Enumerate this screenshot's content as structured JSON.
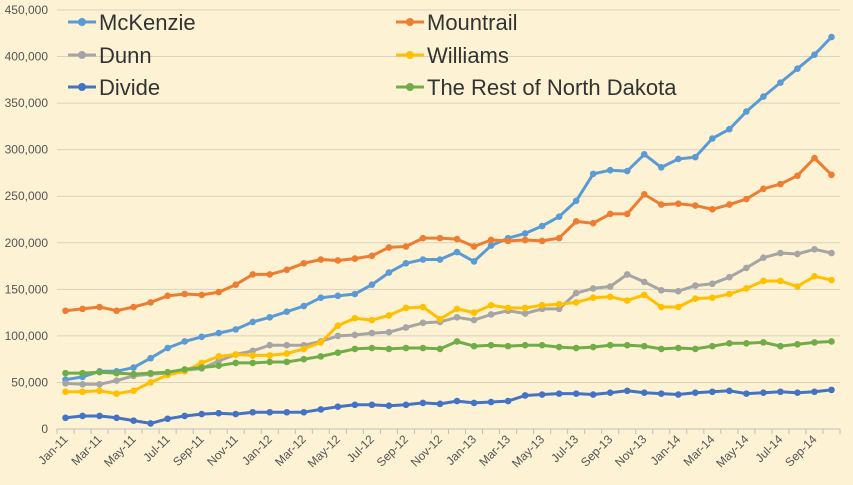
{
  "chart_data": {
    "type": "line",
    "title": "",
    "xlabel": "",
    "ylabel": "",
    "ylim": [
      0,
      450000
    ],
    "yticks": [
      0,
      50000,
      100000,
      150000,
      200000,
      250000,
      300000,
      350000,
      400000,
      450000
    ],
    "ytick_labels": [
      "0",
      "50,000",
      "100,000",
      "150,000",
      "200,000",
      "250,000",
      "300,000",
      "350,000",
      "400,000",
      "450,000"
    ],
    "grid": true,
    "legend_position": "top",
    "x": [
      "Jan-11",
      "Feb-11",
      "Mar-11",
      "Apr-11",
      "May-11",
      "Jun-11",
      "Jul-11",
      "Aug-11",
      "Sep-11",
      "Oct-11",
      "Nov-11",
      "Dec-11",
      "Jan-12",
      "Feb-12",
      "Mar-12",
      "Apr-12",
      "May-12",
      "Jun-12",
      "Jul-12",
      "Aug-12",
      "Sep-12",
      "Oct-12",
      "Nov-12",
      "Dec-12",
      "Jan-13",
      "Feb-13",
      "Mar-13",
      "Apr-13",
      "May-13",
      "Jun-13",
      "Jul-13",
      "Aug-13",
      "Sep-13",
      "Oct-13",
      "Nov-13",
      "Dec-13",
      "Jan-14",
      "Feb-14",
      "Mar-14",
      "Apr-14",
      "May-14",
      "Jun-14",
      "Jul-14",
      "Aug-14",
      "Sep-14",
      "Oct-14"
    ],
    "x_tick_labels": [
      "Jan-11",
      "",
      "Mar-11",
      "",
      "May-11",
      "",
      "Jul-11",
      "",
      "Sep-11",
      "",
      "Nov-11",
      "",
      "Jan-12",
      "",
      "Mar-12",
      "",
      "May-12",
      "",
      "Jul-12",
      "",
      "Sep-12",
      "",
      "Nov-12",
      "",
      "Jan-13",
      "",
      "Mar-13",
      "",
      "May-13",
      "",
      "Jul-13",
      "",
      "Sep-13",
      "",
      "Nov-13",
      "",
      "Jan-14",
      "",
      "Mar-14",
      "",
      "May-14",
      "",
      "Jul-14",
      "",
      "Sep-14",
      ""
    ],
    "series": [
      {
        "name": "McKenzie",
        "color": "#5b9bd5",
        "values": [
          53000,
          56000,
          62000,
          62000,
          66000,
          76000,
          87000,
          94000,
          99000,
          103000,
          107000,
          115000,
          120000,
          126000,
          132000,
          141000,
          143000,
          145000,
          155000,
          168000,
          178000,
          182000,
          182000,
          190000,
          180000,
          197000,
          205000,
          210000,
          218000,
          228000,
          245000,
          274000,
          278000,
          277000,
          295000,
          281000,
          290000,
          292000,
          312000,
          322000,
          341000,
          357000,
          372000,
          387000,
          402000,
          421000
        ]
      },
      {
        "name": "Mountrail",
        "color": "#ed7d31",
        "values": [
          127000,
          129000,
          131000,
          127000,
          131000,
          136000,
          143000,
          145000,
          144000,
          147000,
          155000,
          166000,
          166000,
          171000,
          178000,
          182000,
          181000,
          183000,
          186000,
          195000,
          196000,
          205000,
          205000,
          204000,
          196000,
          203000,
          202000,
          203000,
          202000,
          205000,
          223000,
          221000,
          231000,
          231000,
          252000,
          241000,
          242000,
          240000,
          236000,
          241000,
          247000,
          258000,
          263000,
          272000,
          291000,
          273000
        ]
      },
      {
        "name": "Dunn",
        "color": "#a5a5a5",
        "values": [
          49000,
          48000,
          48000,
          52000,
          57000,
          59000,
          60000,
          63000,
          65000,
          73000,
          80000,
          84000,
          90000,
          90000,
          90000,
          94000,
          100000,
          101000,
          103000,
          104000,
          109000,
          114000,
          115000,
          120000,
          117000,
          123000,
          127000,
          124000,
          129000,
          129000,
          146000,
          151000,
          153000,
          166000,
          158000,
          149000,
          148000,
          154000,
          156000,
          163000,
          173000,
          184000,
          189000,
          188000,
          193000,
          189000
        ]
      },
      {
        "name": "Williams",
        "color": "#ffc000",
        "values": [
          40000,
          40000,
          41000,
          38000,
          41000,
          50000,
          58000,
          62000,
          71000,
          78000,
          80000,
          79000,
          79000,
          81000,
          86000,
          93000,
          111000,
          119000,
          117000,
          122000,
          130000,
          131000,
          118000,
          129000,
          125000,
          133000,
          130000,
          130000,
          133000,
          134000,
          136000,
          141000,
          142000,
          138000,
          144000,
          131000,
          131000,
          140000,
          141000,
          145000,
          151000,
          159000,
          159000,
          153000,
          164000,
          160000
        ]
      },
      {
        "name": "Divide",
        "color": "#4472c4",
        "values": [
          12000,
          14000,
          14000,
          12000,
          9000,
          6000,
          11000,
          14000,
          16000,
          17000,
          16000,
          18000,
          18000,
          18000,
          18000,
          21000,
          24000,
          26000,
          26000,
          25000,
          26000,
          28000,
          27000,
          30000,
          28000,
          29000,
          30000,
          36000,
          37000,
          38000,
          38000,
          37000,
          39000,
          41000,
          39000,
          38000,
          37000,
          39000,
          40000,
          41000,
          38000,
          39000,
          40000,
          39000,
          40000,
          42000
        ]
      },
      {
        "name": "The Rest of North Dakota",
        "color": "#70ad47",
        "values": [
          60000,
          60000,
          61000,
          60000,
          59000,
          60000,
          61000,
          64000,
          66000,
          68000,
          71000,
          71000,
          72000,
          72000,
          75000,
          78000,
          82000,
          86000,
          87000,
          86000,
          87000,
          87000,
          86000,
          94000,
          89000,
          90000,
          89000,
          90000,
          90000,
          88000,
          87000,
          88000,
          90000,
          90000,
          89000,
          86000,
          87000,
          86000,
          89000,
          92000,
          92000,
          93000,
          89000,
          91000,
          93000,
          94000
        ]
      }
    ]
  }
}
